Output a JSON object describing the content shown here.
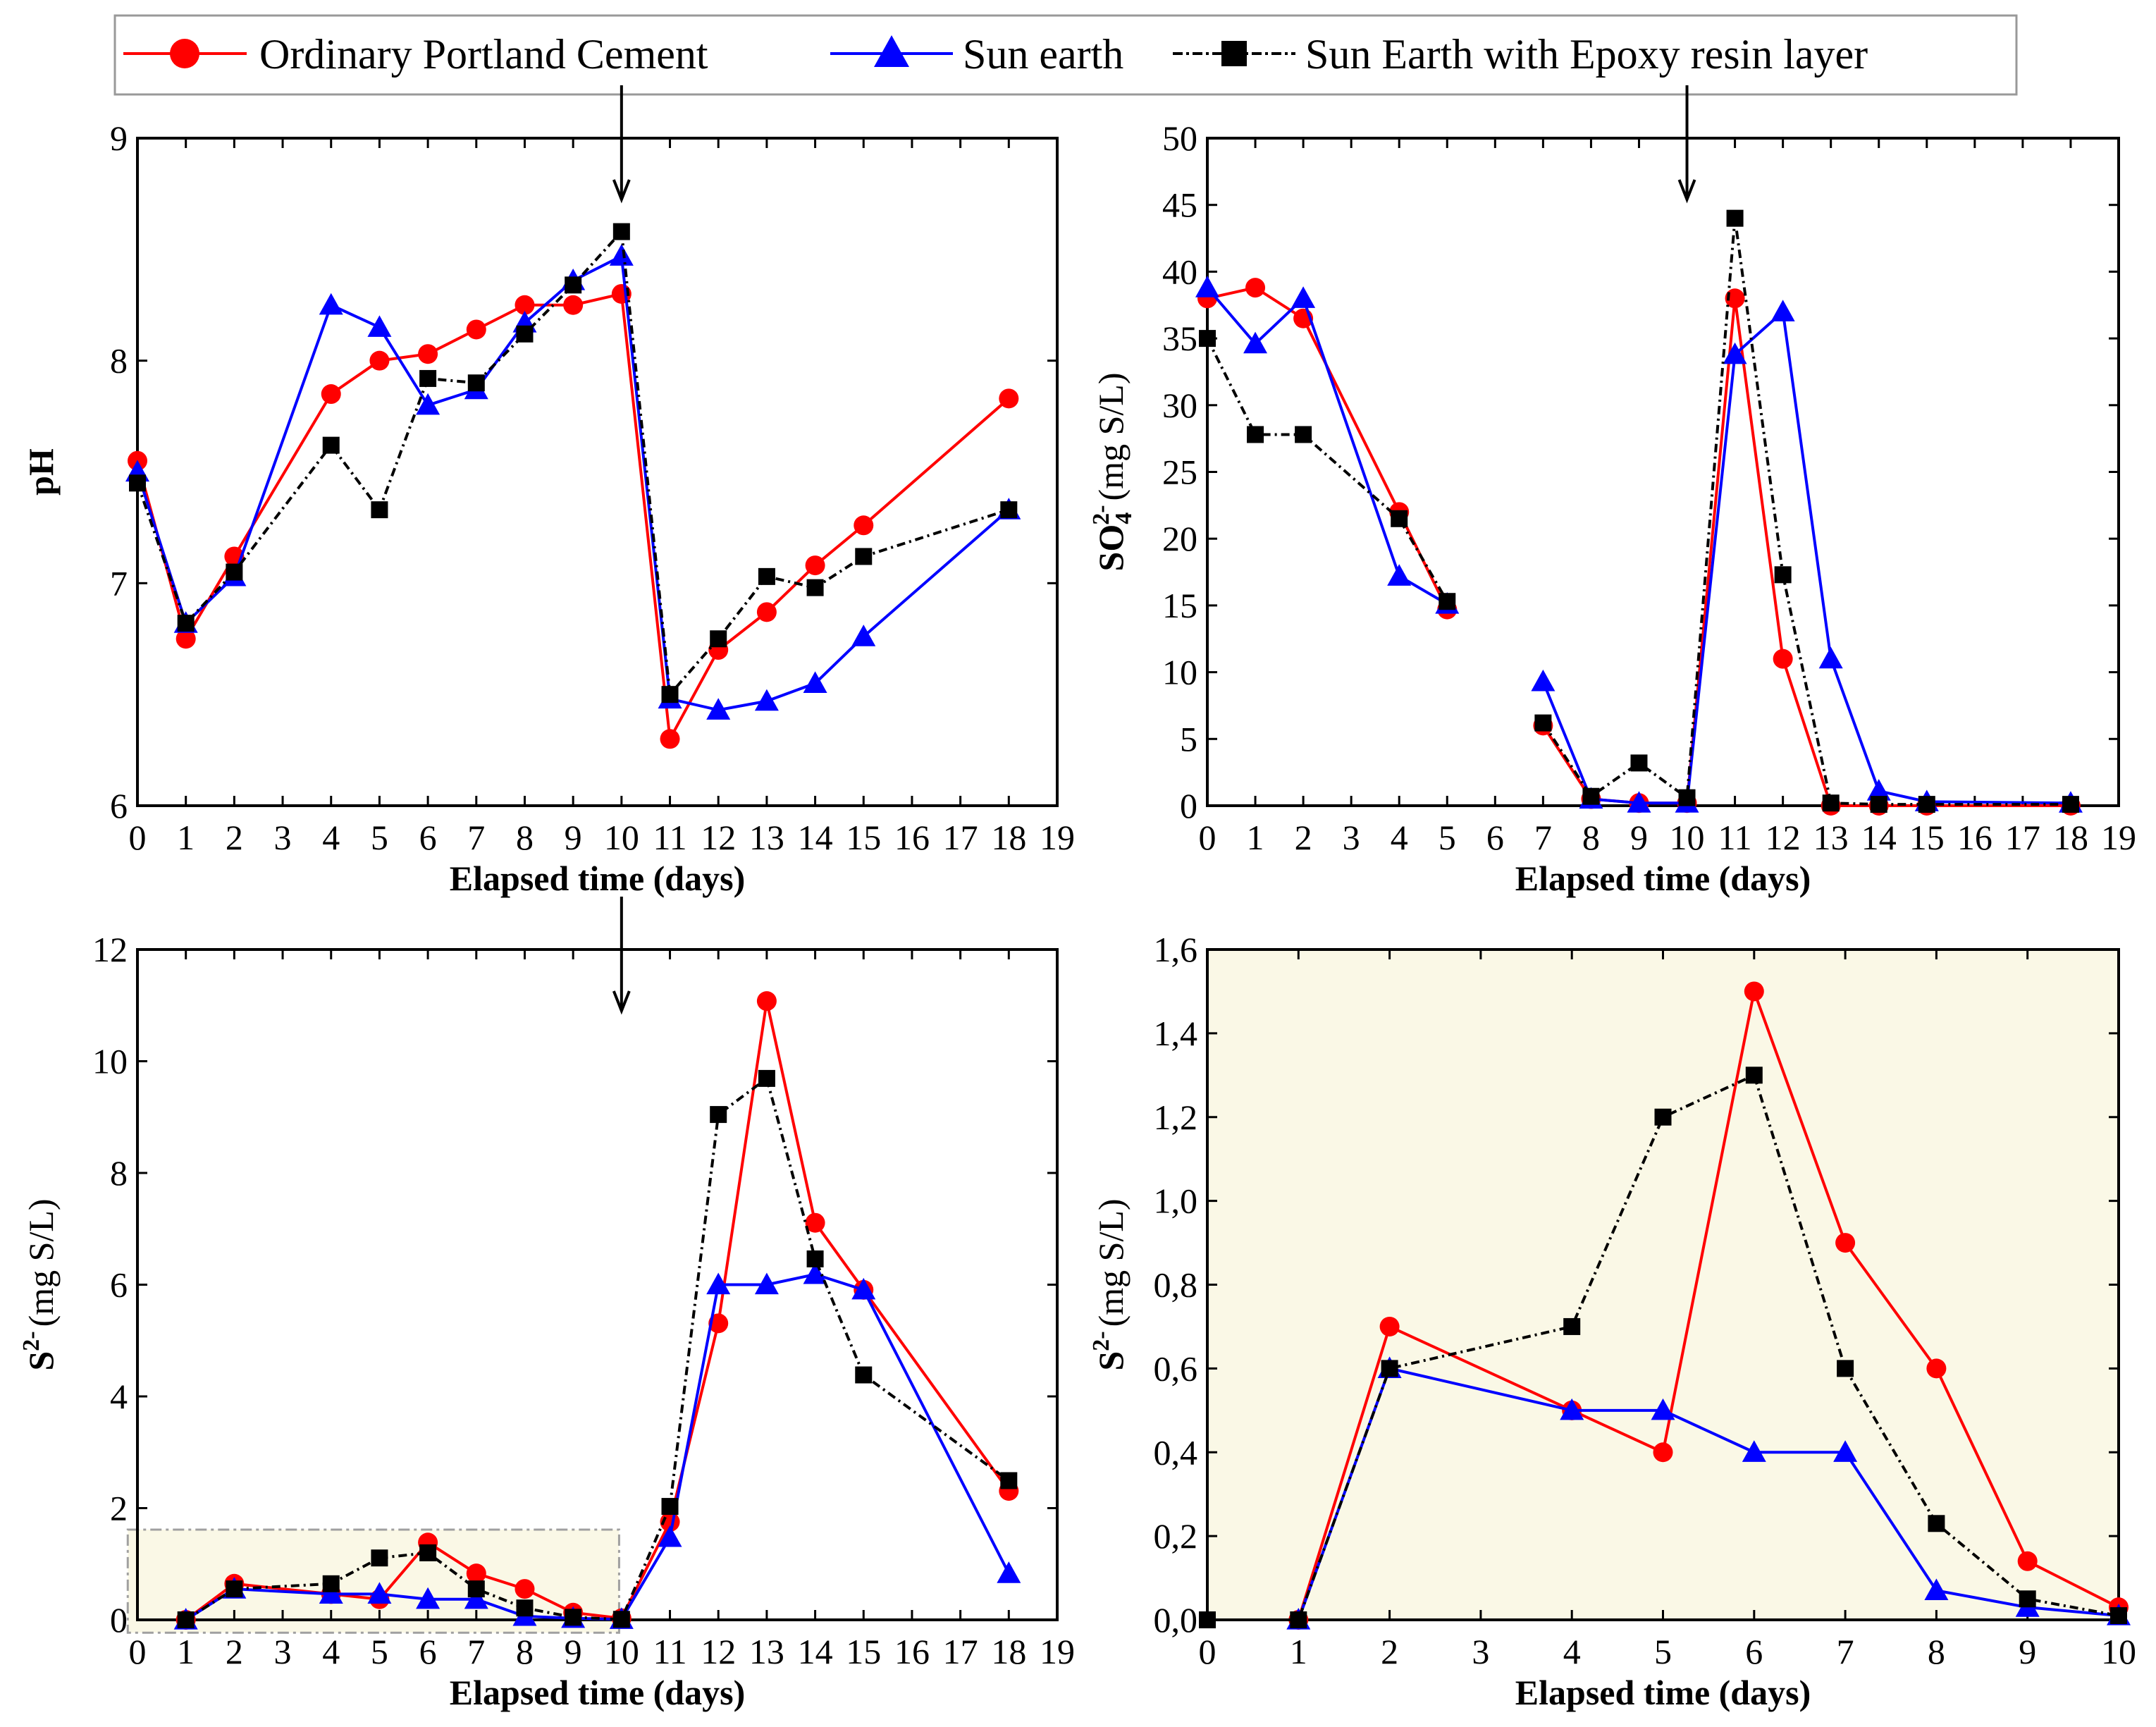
{
  "colors": {
    "opc": "#ff0000",
    "sun_earth": "#0000ff",
    "epoxy": "#000000",
    "highlight_fill": "#faf8e6",
    "highlight_border": "#a0a0a0"
  },
  "legend": {
    "opc": "Ordinary Portland Cement",
    "sun_earth": "Sun earth",
    "epoxy": "Sun Earth with Epoxy resin layer"
  },
  "chart_data": [
    {
      "id": "ph",
      "type": "line",
      "ylabel": "pH",
      "xlabel": "Elapsed time (days)",
      "xlim": [
        0,
        19
      ],
      "ylim": [
        6,
        9
      ],
      "xticks": [
        "0",
        "1",
        "2",
        "3",
        "4",
        "5",
        "6",
        "7",
        "8",
        "9",
        "10",
        "11",
        "12",
        "13",
        "14",
        "15",
        "16",
        "17",
        "18",
        "19"
      ],
      "yticks": [
        "6",
        "7",
        "8",
        "9"
      ],
      "arrow_at_x": 10,
      "grid": false,
      "series": [
        {
          "name": "Ordinary Portland Cement",
          "style": "opc",
          "x": [
            0,
            1,
            2,
            4,
            5,
            6,
            7,
            8,
            9,
            10,
            11,
            12,
            13,
            14,
            15,
            18
          ],
          "y": [
            7.55,
            6.75,
            7.12,
            7.85,
            8.0,
            8.03,
            8.14,
            8.25,
            8.25,
            8.3,
            6.3,
            6.7,
            6.87,
            7.08,
            7.26,
            7.83
          ]
        },
        {
          "name": "Sun earth",
          "style": "sun_earth",
          "x": [
            0,
            1,
            2,
            4,
            5,
            6,
            7,
            8,
            9,
            10,
            11,
            12,
            13,
            14,
            15,
            18
          ],
          "y": [
            7.5,
            6.82,
            7.03,
            8.25,
            8.15,
            7.8,
            7.87,
            8.17,
            8.36,
            8.47,
            6.48,
            6.43,
            6.47,
            6.55,
            6.76,
            7.33
          ]
        },
        {
          "name": "Sun Earth with Epoxy resin layer",
          "style": "epoxy",
          "x": [
            0,
            1,
            2,
            4,
            5,
            6,
            7,
            8,
            9,
            10,
            11,
            12,
            13,
            14,
            15,
            18
          ],
          "y": [
            7.45,
            6.82,
            7.05,
            7.62,
            7.33,
            7.92,
            7.9,
            8.12,
            8.34,
            8.58,
            6.5,
            6.75,
            7.03,
            6.98,
            7.12,
            7.33
          ]
        }
      ]
    },
    {
      "id": "so4",
      "type": "line",
      "ylabel_parts": [
        "SO",
        "4",
        "2-",
        "(mg S/L)"
      ],
      "xlabel": "Elapsed time (days)",
      "xlim": [
        0,
        19
      ],
      "ylim": [
        0,
        50
      ],
      "xticks": [
        "0",
        "1",
        "2",
        "3",
        "4",
        "5",
        "6",
        "7",
        "8",
        "9",
        "10",
        "11",
        "12",
        "13",
        "14",
        "15",
        "16",
        "17",
        "18",
        "19"
      ],
      "yticks": [
        "0",
        "5",
        "10",
        "15",
        "20",
        "25",
        "30",
        "35",
        "40",
        "45",
        "50"
      ],
      "arrow_at_x": 10,
      "grid": false,
      "series": [
        {
          "name": "Ordinary Portland Cement",
          "style": "opc",
          "segments": [
            {
              "x": [
                0,
                1,
                2,
                4,
                5
              ],
              "y": [
                38,
                38.8,
                36.5,
                22,
                14.7
              ]
            },
            {
              "x": [
                7,
                8,
                9,
                10,
                11,
                12,
                13,
                14,
                15,
                18
              ],
              "y": [
                6,
                0.5,
                0.2,
                0.2,
                38,
                11,
                0,
                0,
                0,
                0
              ]
            }
          ]
        },
        {
          "name": "Sun earth",
          "style": "sun_earth",
          "segments": [
            {
              "x": [
                0,
                1,
                2,
                4,
                5
              ],
              "y": [
                38.8,
                34.6,
                38,
                17.2,
                15.1
              ]
            },
            {
              "x": [
                7,
                8,
                9,
                10,
                11,
                12,
                13,
                14,
                15,
                18
              ],
              "y": [
                9.3,
                0.5,
                0.2,
                0.2,
                33.8,
                37,
                11,
                1.1,
                0.3,
                0.2
              ]
            }
          ]
        },
        {
          "name": "Sun Earth with Epoxy resin layer",
          "style": "epoxy",
          "segments": [
            {
              "x": [
                0,
                1,
                2,
                4,
                5
              ],
              "y": [
                35,
                27.8,
                27.8,
                21.5,
                15.3
              ]
            },
            {
              "x": [
                7,
                8,
                9,
                10,
                11,
                12,
                13,
                14,
                15,
                18
              ],
              "y": [
                6.2,
                0.7,
                3.2,
                0.6,
                44,
                17.3,
                0.2,
                0.1,
                0.1,
                0.1
              ]
            }
          ]
        }
      ]
    },
    {
      "id": "s2_full",
      "type": "line",
      "ylabel_parts": [
        "S",
        "2-",
        "(mg S/L)"
      ],
      "xlabel": "Elapsed time (days)",
      "xlim": [
        0,
        19
      ],
      "ylim": [
        0,
        13
      ],
      "xticks": [
        "0",
        "1",
        "2",
        "3",
        "4",
        "5",
        "6",
        "7",
        "8",
        "9",
        "10",
        "11",
        "12",
        "13",
        "14",
        "15",
        "16",
        "17",
        "18",
        "19"
      ],
      "yticks": [
        "0",
        "2",
        "4",
        "6",
        "8",
        "10",
        "12"
      ],
      "arrow_at_x": 10,
      "highlight_box": {
        "x0": -0.2,
        "x1": 9.95,
        "y0": -0.25,
        "y1": 1.75
      },
      "grid": false,
      "series": [
        {
          "name": "Ordinary Portland Cement",
          "style": "opc",
          "x": [
            1,
            2,
            4,
            5,
            6,
            7,
            8,
            9,
            10,
            11,
            12,
            13,
            14,
            15,
            18
          ],
          "y": [
            0,
            0.7,
            0.5,
            0.4,
            1.5,
            0.9,
            0.6,
            0.14,
            0.03,
            1.9,
            5.75,
            12,
            7.7,
            6.4,
            2.5
          ]
        },
        {
          "name": "Sun earth",
          "style": "sun_earth",
          "x": [
            1,
            2,
            4,
            5,
            6,
            7,
            8,
            9,
            10,
            11,
            12,
            13,
            14,
            15,
            18
          ],
          "y": [
            0,
            0.6,
            0.5,
            0.5,
            0.4,
            0.4,
            0.07,
            0.03,
            0.01,
            1.6,
            6.5,
            6.5,
            6.7,
            6.4,
            0.9
          ]
        },
        {
          "name": "Sun Earth with Epoxy resin layer",
          "style": "epoxy",
          "x": [
            1,
            2,
            4,
            5,
            6,
            7,
            8,
            9,
            10,
            11,
            12,
            13,
            14,
            15,
            18
          ],
          "y": [
            0,
            0.6,
            0.7,
            1.2,
            1.3,
            0.6,
            0.23,
            0.05,
            0.01,
            2.2,
            9.8,
            10.5,
            7.0,
            4.75,
            2.7
          ]
        }
      ]
    },
    {
      "id": "s2_zoom",
      "type": "line",
      "ylabel_parts": [
        "S",
        "2-",
        "(mg S/L)"
      ],
      "xlabel": "Elapsed time (days)",
      "xlim": [
        0,
        10
      ],
      "ylim": [
        0,
        1.6
      ],
      "xticks": [
        "0",
        "1",
        "2",
        "3",
        "4",
        "5",
        "6",
        "7",
        "8",
        "9",
        "10"
      ],
      "yticks": [
        "0,0",
        "0,2",
        "0,4",
        "0,6",
        "0,8",
        "1,0",
        "1,2",
        "1,4",
        "1,6"
      ],
      "background": "highlight",
      "grid": false,
      "series": [
        {
          "name": "Ordinary Portland Cement",
          "style": "opc",
          "x": [
            1,
            2,
            4,
            5,
            6,
            7,
            8,
            9,
            10
          ],
          "y": [
            0,
            0.7,
            0.5,
            0.4,
            1.5,
            0.9,
            0.6,
            0.14,
            0.03
          ]
        },
        {
          "name": "Sun earth",
          "style": "sun_earth",
          "x": [
            1,
            2,
            4,
            5,
            6,
            7,
            8,
            9,
            10
          ],
          "y": [
            0,
            0.6,
            0.5,
            0.5,
            0.4,
            0.4,
            0.07,
            0.03,
            0.01
          ]
        },
        {
          "name": "Sun Earth with Epoxy resin layer",
          "style": "epoxy",
          "x": [
            0,
            1,
            2,
            4,
            5,
            6,
            7,
            8,
            9,
            10
          ],
          "y": [
            0,
            0,
            0.6,
            0.7,
            1.2,
            1.3,
            0.6,
            0.23,
            0.05,
            0.01
          ]
        }
      ]
    }
  ]
}
